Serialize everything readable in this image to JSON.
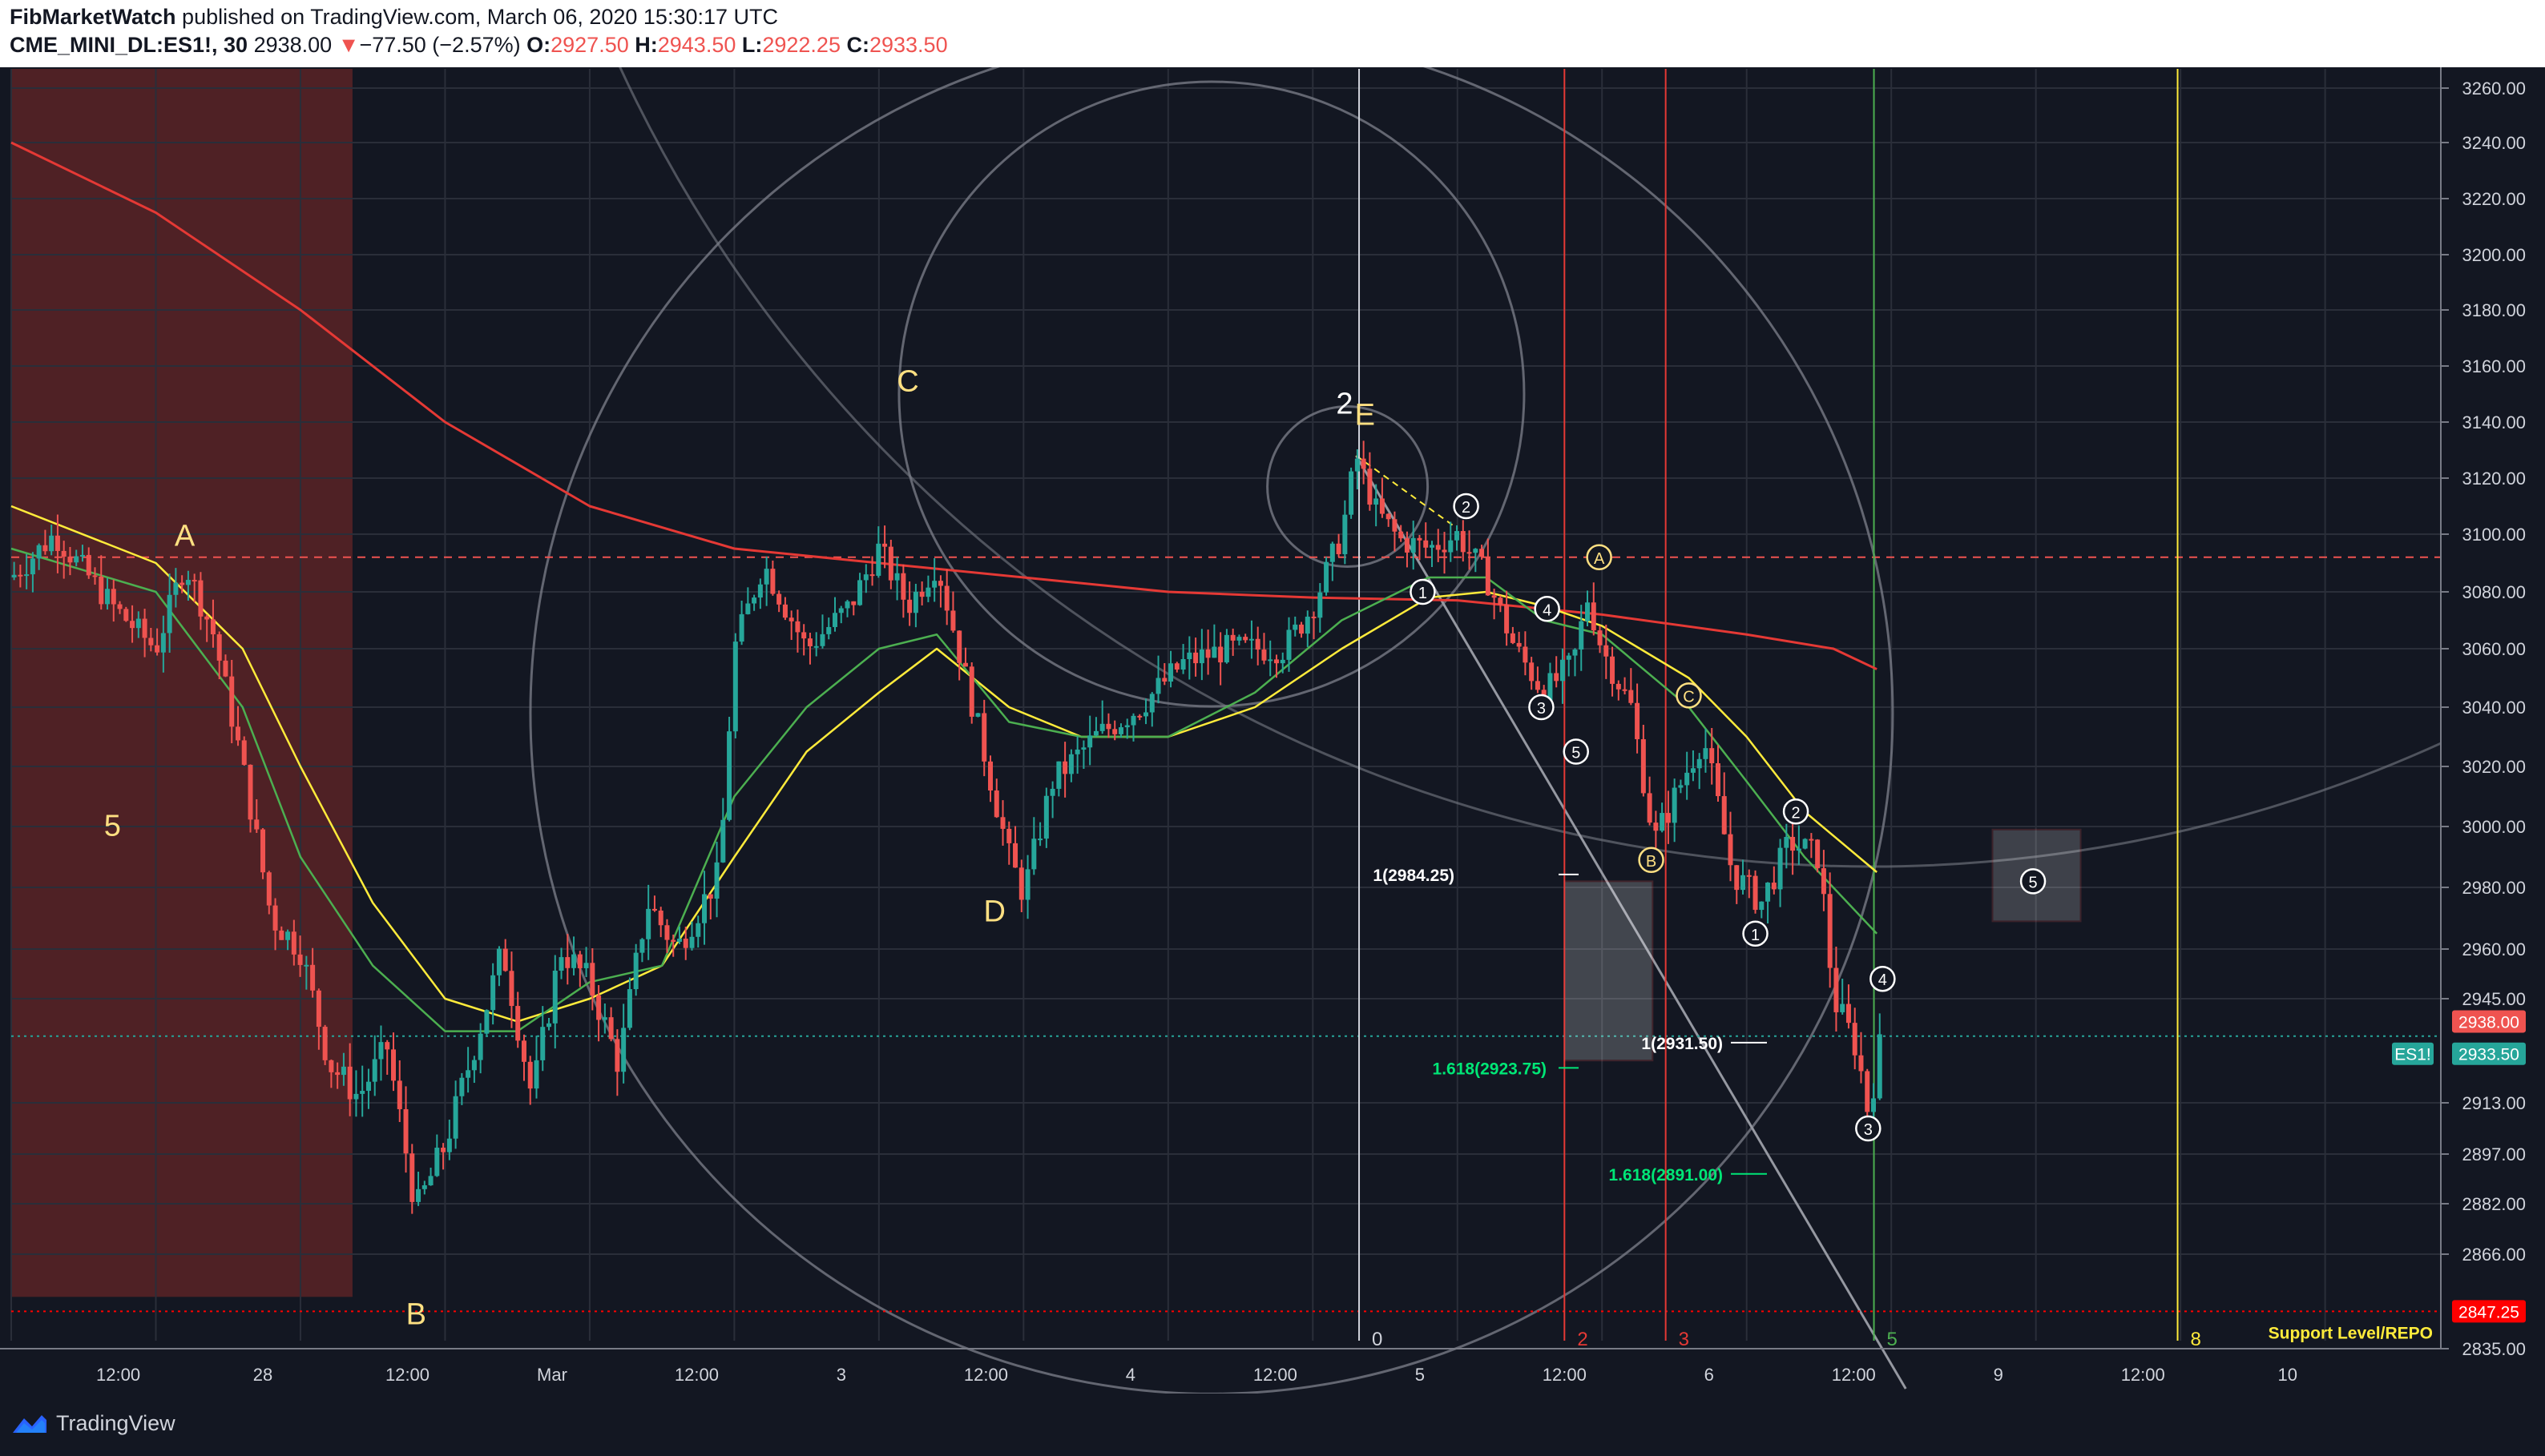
{
  "header": {
    "publisher": "FibMarketWatch",
    "published_text": "published on TradingView.com, March 06, 2020 15:30:17 UTC",
    "symbol": "CME_MINI_DL:ES1!, 30",
    "last": "2938.00",
    "change": "−77.50 (−2.57%)",
    "o_label": "O:",
    "o_value": "2927.50",
    "h_label": "H:",
    "h_value": "2943.50",
    "l_label": "L:",
    "l_value": "2922.25",
    "c_label": "C:",
    "c_value": "2933.50"
  },
  "footer": {
    "brand": "TradingView"
  },
  "colors": {
    "background": "#131722",
    "up": "#26a69a",
    "down": "#ef5350",
    "ema_fast": "#4caf50",
    "ema_slow": "#ffeb3b",
    "ma_long": "#e53935",
    "fib_time_red": "#e53935",
    "fib_time_green": "#4caf50",
    "fib_time_yellow": "#ffeb3b"
  },
  "chart_data": {
    "type": "candlestick",
    "symbol": "ES1!",
    "interval": "30",
    "ylim": [
      2835,
      3265
    ],
    "y_ticks": [
      "3260.00",
      "3240.00",
      "3220.00",
      "3200.00",
      "3180.00",
      "3160.00",
      "3140.00",
      "3120.00",
      "3100.00",
      "3080.00",
      "3060.00",
      "3040.00",
      "3020.00",
      "3000.00",
      "2980.00",
      "2960.00",
      "2945.00",
      "2913.00",
      "2897.00",
      "2882.00",
      "2866.00",
      "2835.00"
    ],
    "x_ticks": [
      "12:00",
      "28",
      "12:00",
      "Mar",
      "12:00",
      "3",
      "12:00",
      "4",
      "12:00",
      "5",
      "12:00",
      "6",
      "12:00",
      "9",
      "12:00",
      "10",
      "12:00"
    ],
    "price_labels": [
      {
        "text": "2938.00",
        "value": 2938.0,
        "color": "#ef5350"
      },
      {
        "text": "ES1!",
        "value": 2933.5,
        "color": "#26a69a"
      },
      {
        "text": "2933.50",
        "value": 2933.5,
        "color": "#26a69a"
      },
      {
        "text": "2847.25",
        "value": 2847.25,
        "color": "#ff0000"
      }
    ],
    "wave_labels": [
      {
        "text": "A",
        "x": 0.6,
        "y": 3096,
        "color": "#ffe082"
      },
      {
        "text": "5",
        "x": 0.35,
        "y": 2997,
        "color": "#ffe082"
      },
      {
        "text": "B",
        "x": 1.4,
        "y": 2843,
        "color": "#ffe082"
      },
      {
        "text": "C",
        "x": 3.1,
        "y": 3151,
        "color": "#ffe082"
      },
      {
        "text": "D",
        "x": 3.4,
        "y": 2969,
        "color": "#ffe082"
      },
      {
        "text": "2",
        "x": 4.61,
        "y": 3143,
        "color": "#ffffff"
      },
      {
        "text": "E",
        "x": 4.68,
        "y": 3139,
        "color": "#ffe082"
      }
    ],
    "circled_labels": [
      {
        "text": "1",
        "x": 4.88,
        "y": 3080,
        "color": "#ffffff"
      },
      {
        "text": "2",
        "x": 5.03,
        "y": 3110,
        "color": "#ffffff"
      },
      {
        "text": "3",
        "x": 5.29,
        "y": 3040,
        "color": "#ffffff"
      },
      {
        "text": "4",
        "x": 5.31,
        "y": 3074,
        "color": "#ffffff"
      },
      {
        "text": "5",
        "x": 5.41,
        "y": 3025,
        "color": "#ffffff"
      },
      {
        "text": "A",
        "x": 5.49,
        "y": 3092,
        "color": "#ffe082"
      },
      {
        "text": "B",
        "x": 5.67,
        "y": 2989,
        "color": "#ffe082"
      },
      {
        "text": "C",
        "x": 5.8,
        "y": 3044,
        "color": "#ffe082"
      },
      {
        "text": "1",
        "x": 6.03,
        "y": 2965,
        "color": "#ffffff"
      },
      {
        "text": "2",
        "x": 6.17,
        "y": 3005,
        "color": "#ffffff"
      },
      {
        "text": "3",
        "x": 6.42,
        "y": 2905,
        "color": "#ffffff"
      },
      {
        "text": "4",
        "x": 6.47,
        "y": 2951,
        "color": "#ffffff"
      },
      {
        "text": "5",
        "x": 6.99,
        "y": 2982,
        "color": "#ffffff"
      }
    ],
    "fib_time_zones": [
      {
        "label": "0",
        "x": 4.66,
        "color": "#d1d4dc"
      },
      {
        "label": "2",
        "x": 5.37,
        "color": "#e53935"
      },
      {
        "label": "3",
        "x": 5.72,
        "color": "#e53935"
      },
      {
        "label": "5",
        "x": 6.44,
        "color": "#4caf50"
      },
      {
        "label": "8",
        "x": 7.49,
        "color": "#ffeb3b"
      }
    ],
    "annotations": [
      {
        "text": "1(2984.25)",
        "value": 2984.25,
        "color": "#ffffff"
      },
      {
        "text": "1.618(2923.75)",
        "value": 2923.75,
        "color": "#00e676"
      },
      {
        "text": "1(2931.50)",
        "value": 2931.5,
        "color": "#ffffff"
      },
      {
        "text": "1.618(2891.00)",
        "value": 2891.0,
        "color": "#00e676"
      },
      {
        "text": "Support Level/REPO",
        "value": 2847.25,
        "color": "#ffeb3b"
      }
    ],
    "horizontal_levels": [
      {
        "value": 3092,
        "color": "#ef5350",
        "style": "dashed"
      },
      {
        "value": 2933.5,
        "color": "#26a69a",
        "style": "dotted"
      },
      {
        "value": 2847.25,
        "color": "#ff0000",
        "style": "dotted"
      }
    ],
    "close_path": [
      [
        0,
        3085
      ],
      [
        0.15,
        3100
      ],
      [
        0.35,
        3075
      ],
      [
        0.5,
        3060
      ],
      [
        0.6,
        3090
      ],
      [
        0.7,
        3065
      ],
      [
        0.8,
        3020
      ],
      [
        0.9,
        2970
      ],
      [
        1.0,
        2960
      ],
      [
        1.1,
        2925
      ],
      [
        1.2,
        2915
      ],
      [
        1.3,
        2930
      ],
      [
        1.4,
        2880
      ],
      [
        1.5,
        2900
      ],
      [
        1.6,
        2930
      ],
      [
        1.7,
        2960
      ],
      [
        1.8,
        2915
      ],
      [
        1.9,
        2960
      ],
      [
        2.0,
        2950
      ],
      [
        2.1,
        2925
      ],
      [
        2.2,
        2975
      ],
      [
        2.3,
        2960
      ],
      [
        2.45,
        2985
      ],
      [
        2.5,
        3060
      ],
      [
        2.6,
        3090
      ],
      [
        2.75,
        3060
      ],
      [
        2.9,
        3075
      ],
      [
        3.0,
        3095
      ],
      [
        3.1,
        3075
      ],
      [
        3.2,
        3090
      ],
      [
        3.3,
        3050
      ],
      [
        3.45,
        2990
      ],
      [
        3.5,
        2978
      ],
      [
        3.6,
        3015
      ],
      [
        3.75,
        3030
      ],
      [
        3.9,
        3040
      ],
      [
        4.05,
        3055
      ],
      [
        4.2,
        3060
      ],
      [
        4.4,
        3060
      ],
      [
        4.5,
        3075
      ],
      [
        4.6,
        3100
      ],
      [
        4.65,
        3128
      ],
      [
        4.72,
        3108
      ],
      [
        4.8,
        3098
      ],
      [
        4.9,
        3095
      ],
      [
        5.0,
        3100
      ],
      [
        5.1,
        3085
      ],
      [
        5.2,
        3060
      ],
      [
        5.3,
        3045
      ],
      [
        5.4,
        3055
      ],
      [
        5.45,
        3078
      ],
      [
        5.5,
        3060
      ],
      [
        5.6,
        3040
      ],
      [
        5.68,
        2995
      ],
      [
        5.8,
        3020
      ],
      [
        5.85,
        3030
      ],
      [
        5.95,
        2985
      ],
      [
        6.05,
        2975
      ],
      [
        6.15,
        2995
      ],
      [
        6.25,
        2990
      ],
      [
        6.3,
        2945
      ],
      [
        6.38,
        2930
      ],
      [
        6.42,
        2910
      ],
      [
        6.47,
        2935
      ]
    ],
    "ema_fast": [
      [
        0,
        3095
      ],
      [
        0.5,
        3080
      ],
      [
        0.8,
        3040
      ],
      [
        1.0,
        2990
      ],
      [
        1.25,
        2955
      ],
      [
        1.5,
        2935
      ],
      [
        1.75,
        2935
      ],
      [
        2.0,
        2950
      ],
      [
        2.25,
        2955
      ],
      [
        2.5,
        3010
      ],
      [
        2.75,
        3040
      ],
      [
        3.0,
        3060
      ],
      [
        3.2,
        3065
      ],
      [
        3.45,
        3035
      ],
      [
        3.7,
        3030
      ],
      [
        4.0,
        3030
      ],
      [
        4.3,
        3045
      ],
      [
        4.6,
        3070
      ],
      [
        4.9,
        3085
      ],
      [
        5.1,
        3085
      ],
      [
        5.3,
        3070
      ],
      [
        5.5,
        3065
      ],
      [
        5.8,
        3040
      ],
      [
        6.0,
        3015
      ],
      [
        6.2,
        2990
      ],
      [
        6.45,
        2965
      ]
    ],
    "ema_slow": [
      [
        0,
        3110
      ],
      [
        0.5,
        3090
      ],
      [
        0.8,
        3060
      ],
      [
        1.0,
        3020
      ],
      [
        1.25,
        2975
      ],
      [
        1.5,
        2945
      ],
      [
        1.75,
        2938
      ],
      [
        2.0,
        2945
      ],
      [
        2.25,
        2955
      ],
      [
        2.5,
        2990
      ],
      [
        2.75,
        3025
      ],
      [
        3.0,
        3045
      ],
      [
        3.2,
        3060
      ],
      [
        3.45,
        3040
      ],
      [
        3.7,
        3030
      ],
      [
        4.0,
        3030
      ],
      [
        4.3,
        3040
      ],
      [
        4.6,
        3060
      ],
      [
        4.9,
        3078
      ],
      [
        5.1,
        3080
      ],
      [
        5.3,
        3075
      ],
      [
        5.5,
        3068
      ],
      [
        5.8,
        3050
      ],
      [
        6.0,
        3030
      ],
      [
        6.2,
        3005
      ],
      [
        6.45,
        2985
      ]
    ],
    "ma_long": [
      [
        0,
        3240
      ],
      [
        0.5,
        3215
      ],
      [
        1.0,
        3180
      ],
      [
        1.5,
        3140
      ],
      [
        2.0,
        3110
      ],
      [
        2.5,
        3095
      ],
      [
        3.0,
        3090
      ],
      [
        3.5,
        3085
      ],
      [
        4.0,
        3080
      ],
      [
        4.5,
        3078
      ],
      [
        5.0,
        3077
      ],
      [
        5.5,
        3072
      ],
      [
        6.0,
        3065
      ],
      [
        6.3,
        3060
      ],
      [
        6.45,
        3053
      ]
    ]
  }
}
